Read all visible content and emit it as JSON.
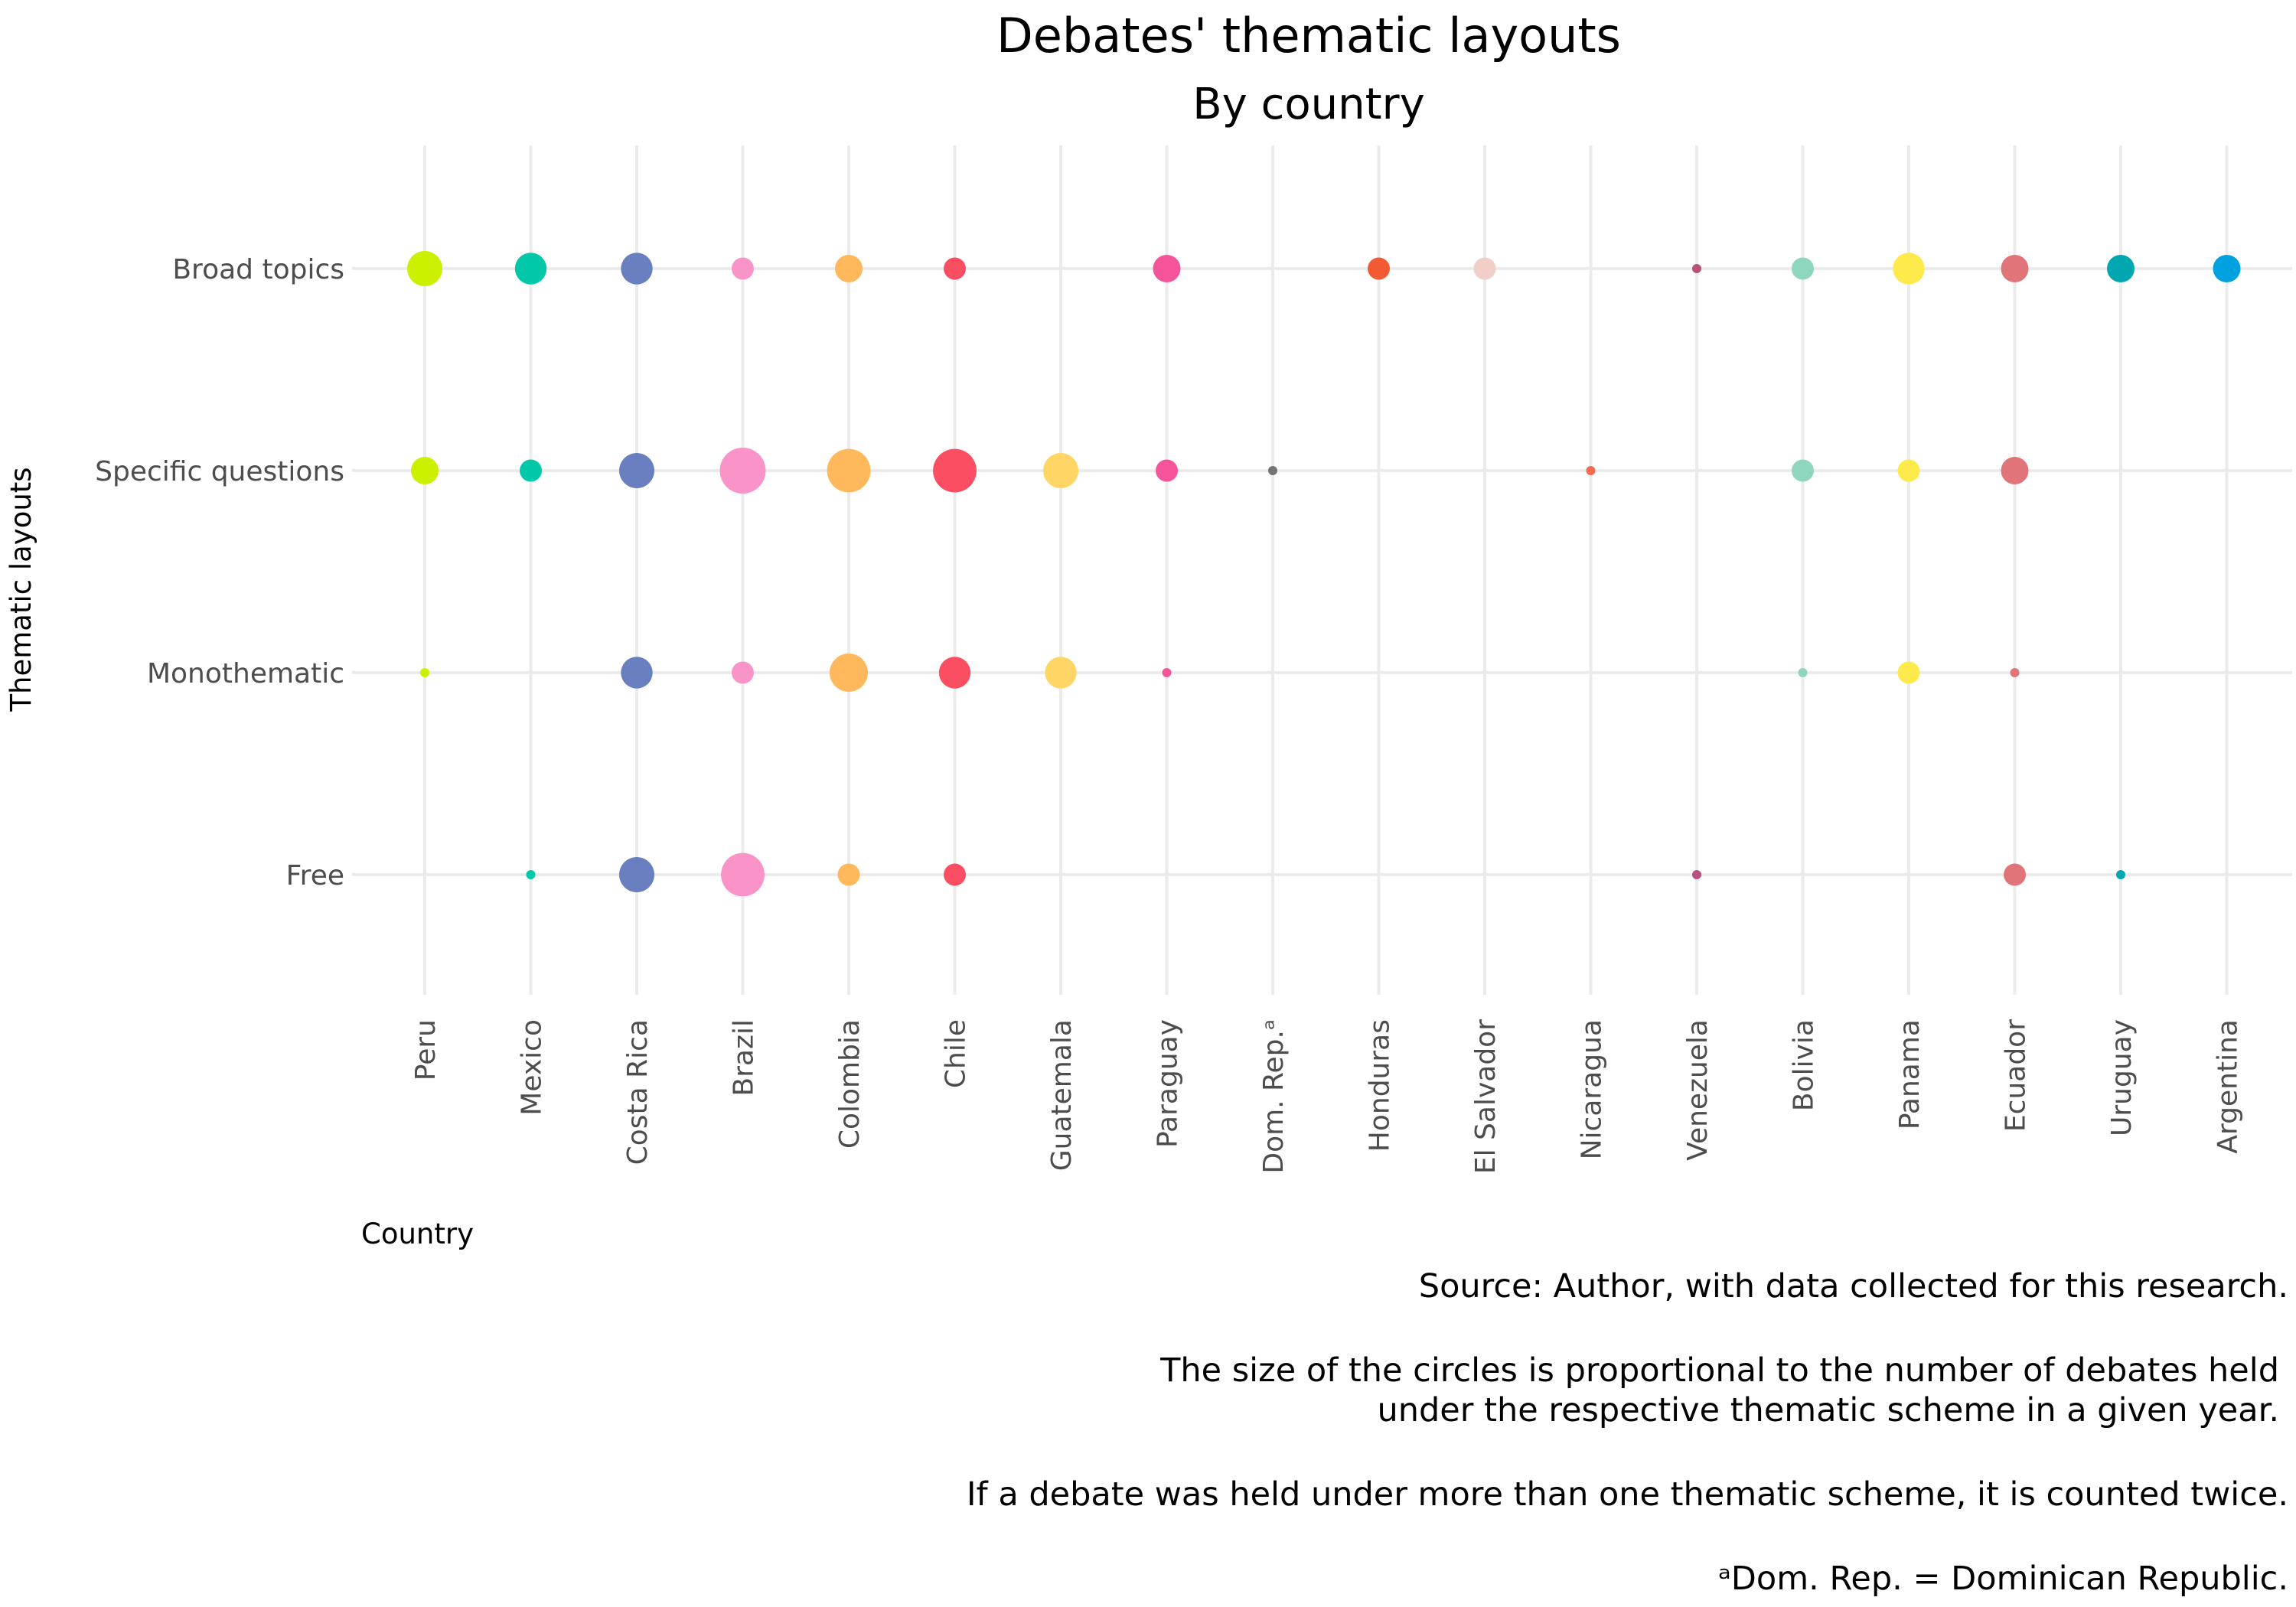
{
  "chart_data": {
    "type": "scatter",
    "title": "Debates' thematic layouts",
    "subtitle": "By country",
    "xlabel": "Country",
    "ylabel": "Thematic layouts",
    "grid": true,
    "legend": "none",
    "size_encoding": "number of debates",
    "categories": [
      "Peru",
      "Mexico",
      "Costa Rica",
      "Brazil",
      "Colombia",
      "Chile",
      "Guatemala",
      "Paraguay",
      "Dom. Rep.ᵃ",
      "Honduras",
      "El Salvador",
      "Nicaragua",
      "Venezuela",
      "Bolivia",
      "Panama",
      "Ecuador",
      "Uruguay",
      "Argentina"
    ],
    "y_categories": [
      "Broad topics",
      "Specific questions",
      "Monothematic",
      "Free"
    ],
    "colors": {
      "Peru": "#ccf000",
      "Mexico": "#00c8a8",
      "Costa Rica": "#6a7fbf",
      "Brazil": "#f993c8",
      "Colombia": "#ffb85c",
      "Chile": "#fb4e62",
      "Guatemala": "#ffd666",
      "Paraguay": "#f5549a",
      "Dom. Rep.ᵃ": "#757575",
      "Honduras": "#f15a32",
      "El Salvador": "#f2cec8",
      "Nicaragua": "#f76a50",
      "Venezuela": "#b7507a",
      "Bolivia": "#8fd6bf",
      "Panama": "#ffea4c",
      "Ecuador": "#e07478",
      "Uruguay": "#00a7b0",
      "Argentina": "#00a1df"
    },
    "points": [
      {
        "country": "Peru",
        "layout": "Broad topics",
        "size": 5
      },
      {
        "country": "Mexico",
        "layout": "Broad topics",
        "size": 4
      },
      {
        "country": "Costa Rica",
        "layout": "Broad topics",
        "size": 4
      },
      {
        "country": "Brazil",
        "layout": "Broad topics",
        "size": 2
      },
      {
        "country": "Colombia",
        "layout": "Broad topics",
        "size": 3
      },
      {
        "country": "Chile",
        "layout": "Broad topics",
        "size": 2
      },
      {
        "country": "Paraguay",
        "layout": "Broad topics",
        "size": 3
      },
      {
        "country": "Honduras",
        "layout": "Broad topics",
        "size": 2
      },
      {
        "country": "El Salvador",
        "layout": "Broad topics",
        "size": 2
      },
      {
        "country": "Venezuela",
        "layout": "Broad topics",
        "size": 1
      },
      {
        "country": "Bolivia",
        "layout": "Broad topics",
        "size": 2
      },
      {
        "country": "Panama",
        "layout": "Broad topics",
        "size": 4
      },
      {
        "country": "Ecuador",
        "layout": "Broad topics",
        "size": 3
      },
      {
        "country": "Uruguay",
        "layout": "Broad topics",
        "size": 3
      },
      {
        "country": "Argentina",
        "layout": "Broad topics",
        "size": 3
      },
      {
        "country": "Peru",
        "layout": "Specific questions",
        "size": 3
      },
      {
        "country": "Mexico",
        "layout": "Specific questions",
        "size": 2
      },
      {
        "country": "Costa Rica",
        "layout": "Specific questions",
        "size": 5
      },
      {
        "country": "Brazil",
        "layout": "Specific questions",
        "size": 9
      },
      {
        "country": "Colombia",
        "layout": "Specific questions",
        "size": 8
      },
      {
        "country": "Chile",
        "layout": "Specific questions",
        "size": 8
      },
      {
        "country": "Guatemala",
        "layout": "Specific questions",
        "size": 5
      },
      {
        "country": "Paraguay",
        "layout": "Specific questions",
        "size": 2
      },
      {
        "country": "Dom. Rep.ᵃ",
        "layout": "Specific questions",
        "size": 1
      },
      {
        "country": "Nicaragua",
        "layout": "Specific questions",
        "size": 1
      },
      {
        "country": "Bolivia",
        "layout": "Specific questions",
        "size": 2
      },
      {
        "country": "Panama",
        "layout": "Specific questions",
        "size": 2
      },
      {
        "country": "Ecuador",
        "layout": "Specific questions",
        "size": 3
      },
      {
        "country": "Peru",
        "layout": "Monothematic",
        "size": 1
      },
      {
        "country": "Costa Rica",
        "layout": "Monothematic",
        "size": 4
      },
      {
        "country": "Brazil",
        "layout": "Monothematic",
        "size": 2
      },
      {
        "country": "Colombia",
        "layout": "Monothematic",
        "size": 6
      },
      {
        "country": "Chile",
        "layout": "Monothematic",
        "size": 4
      },
      {
        "country": "Guatemala",
        "layout": "Monothematic",
        "size": 4
      },
      {
        "country": "Paraguay",
        "layout": "Monothematic",
        "size": 1
      },
      {
        "country": "Bolivia",
        "layout": "Monothematic",
        "size": 1
      },
      {
        "country": "Panama",
        "layout": "Monothematic",
        "size": 2
      },
      {
        "country": "Ecuador",
        "layout": "Monothematic",
        "size": 1
      },
      {
        "country": "Mexico",
        "layout": "Free",
        "size": 1
      },
      {
        "country": "Costa Rica",
        "layout": "Free",
        "size": 5
      },
      {
        "country": "Brazil",
        "layout": "Free",
        "size": 8
      },
      {
        "country": "Colombia",
        "layout": "Free",
        "size": 2
      },
      {
        "country": "Chile",
        "layout": "Free",
        "size": 2
      },
      {
        "country": "Venezuela",
        "layout": "Free",
        "size": 1
      },
      {
        "country": "Ecuador",
        "layout": "Free",
        "size": 2
      },
      {
        "country": "Uruguay",
        "layout": "Free",
        "size": 1
      }
    ],
    "caption": [
      "Source: Author, with data collected for this research.",
      "The size of the circles is proportional to the number of debates held",
      "under the respective thematic scheme in a given year.",
      "If a debate was held under more than one thematic scheme, it is counted twice.",
      "ᵃDom. Rep. = Dominican Republic."
    ]
  }
}
